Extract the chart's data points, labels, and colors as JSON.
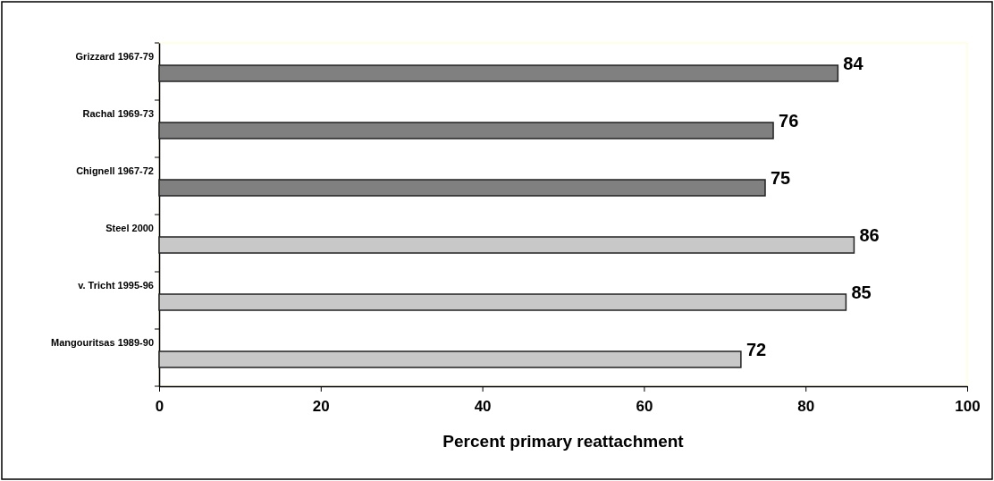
{
  "chart_data": {
    "type": "bar",
    "orientation": "horizontal",
    "xlabel": "Percent primary reattachment",
    "categories": [
      "Grizzard 1967-79",
      "Rachal 1969-73",
      "Chignell 1967-72",
      "Steel 2000",
      "v. Tricht 1995-96",
      "Mangouritsas 1989-90"
    ],
    "values": [
      84,
      76,
      75,
      86,
      85,
      72
    ],
    "colors": [
      "#808080",
      "#808080",
      "#808080",
      "#c8c8c8",
      "#c8c8c8",
      "#c8c8c8"
    ],
    "xlim": [
      0,
      100
    ],
    "xticks": [
      0,
      20,
      40,
      60,
      80,
      100
    ],
    "data_labels": true
  }
}
